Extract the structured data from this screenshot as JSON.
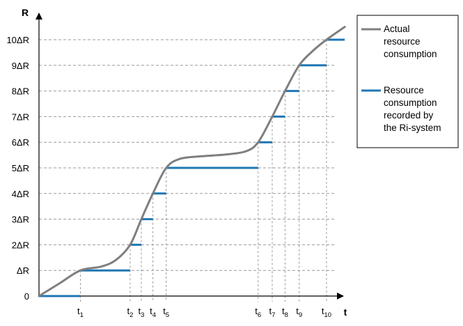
{
  "chart_data": {
    "type": "line",
    "x_axis_label": "t",
    "y_axis_label": "R",
    "y_ticks": [
      "0",
      "ΔR",
      "2ΔR",
      "3ΔR",
      "4ΔR",
      "5ΔR",
      "6ΔR",
      "7ΔR",
      "8ΔR",
      "9ΔR",
      "10ΔR"
    ],
    "x_ticks": [
      {
        "base": "t",
        "sub": "1",
        "t": 1.0
      },
      {
        "base": "t",
        "sub": "2",
        "t": 2.2
      },
      {
        "base": "t",
        "sub": "3",
        "t": 2.47
      },
      {
        "base": "t",
        "sub": "4",
        "t": 2.75
      },
      {
        "base": "t",
        "sub": "5",
        "t": 3.07
      },
      {
        "base": "t",
        "sub": "6",
        "t": 5.29
      },
      {
        "base": "t",
        "sub": "7",
        "t": 5.63
      },
      {
        "base": "t",
        "sub": "8",
        "t": 5.94
      },
      {
        "base": "t",
        "sub": "9",
        "t": 6.28
      },
      {
        "base": "t",
        "sub": "10",
        "t": 6.94
      }
    ],
    "x_range": [
      0,
      7.68
    ],
    "y_range": [
      0,
      10.7
    ],
    "grid": "horizontal dashed + vertical dashed drop lines",
    "legend_position": "right",
    "series": [
      {
        "name": "Actual resource consumption",
        "color": "#7f7f7f",
        "type": "smooth-line",
        "points": [
          [
            0,
            0
          ],
          [
            0.5,
            0.5
          ],
          [
            1.0,
            1.0
          ],
          [
            1.5,
            1.15
          ],
          [
            1.85,
            1.4
          ],
          [
            2.2,
            2.0
          ],
          [
            2.47,
            3.0
          ],
          [
            2.75,
            4.0
          ],
          [
            3.07,
            5.0
          ],
          [
            3.4,
            5.35
          ],
          [
            3.9,
            5.45
          ],
          [
            4.5,
            5.52
          ],
          [
            5.0,
            5.65
          ],
          [
            5.29,
            6.0
          ],
          [
            5.63,
            7.0
          ],
          [
            5.94,
            8.0
          ],
          [
            6.28,
            9.0
          ],
          [
            6.6,
            9.55
          ],
          [
            6.94,
            10.0
          ],
          [
            7.38,
            10.5
          ]
        ]
      },
      {
        "name": "Resource consumption recorded by the Ri-system",
        "color": "#1f77b4",
        "type": "steps",
        "steps": [
          {
            "level": 0,
            "from": 0,
            "to": 1.0
          },
          {
            "level": 1,
            "from": 1.0,
            "to": 2.2
          },
          {
            "level": 2,
            "from": 2.2,
            "to": 2.47
          },
          {
            "level": 3,
            "from": 2.47,
            "to": 2.75
          },
          {
            "level": 4,
            "from": 2.75,
            "to": 3.07
          },
          {
            "level": 5,
            "from": 3.07,
            "to": 5.29
          },
          {
            "level": 6,
            "from": 5.29,
            "to": 5.63
          },
          {
            "level": 7,
            "from": 5.63,
            "to": 5.94
          },
          {
            "level": 8,
            "from": 5.94,
            "to": 6.28
          },
          {
            "level": 9,
            "from": 6.28,
            "to": 6.94
          },
          {
            "level": 10,
            "from": 6.94,
            "to": 7.38
          }
        ]
      }
    ],
    "legend": [
      {
        "lines": [
          "Actual",
          "resource",
          "consumption"
        ],
        "color": "#7f7f7f"
      },
      {
        "lines": [
          "Resource",
          "consumption",
          "recorded by",
          "the Ri-system"
        ],
        "color": "#1f77b4"
      }
    ]
  }
}
